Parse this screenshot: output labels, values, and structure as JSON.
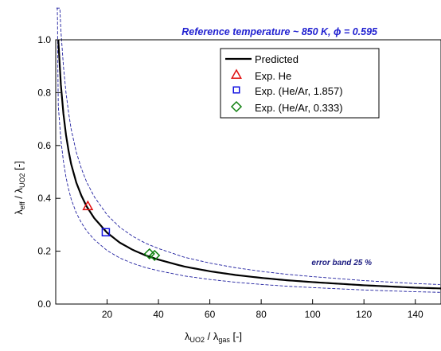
{
  "chart_data": {
    "type": "line",
    "title": "",
    "annotation_title": {
      "prefix": "Reference temperature ~ 850 K, ",
      "phi_symbol": "ϕ",
      "suffix": " = 0.595"
    },
    "annotation_error": "error band 25 %",
    "xlabel": {
      "main": "λ",
      "sub1": "UO2",
      "mid": " / λ",
      "sub2": "gas",
      "tail": " [-]"
    },
    "ylabel": {
      "main": "λ",
      "sub1": "eff",
      "mid": " / λ",
      "sub2": "UO2",
      "tail": " [-]"
    },
    "xlim": [
      0,
      150
    ],
    "ylim": [
      0,
      1.0
    ],
    "xticks": [
      20,
      40,
      60,
      80,
      100,
      120,
      140
    ],
    "yticks": [
      0.0,
      0.2,
      0.4,
      0.6,
      0.8,
      1.0
    ],
    "ytick_labels": [
      "0.0",
      "0.2",
      "0.4",
      "0.6",
      "0.8",
      "1.0"
    ],
    "grid": false,
    "legend_position": "top-right",
    "colors": {
      "predicted": "#000000",
      "error_band": "#1f1f9f",
      "he": "#e01010",
      "he_ar_1857": "#1010e0",
      "he_ar_0333": "#108010"
    },
    "series": [
      {
        "name": "Predicted",
        "kind": "line",
        "x": [
          1,
          2,
          3,
          4,
          5,
          6,
          8,
          10,
          12,
          15,
          20,
          25,
          30,
          35,
          40,
          50,
          60,
          70,
          80,
          90,
          100,
          120,
          140,
          150
        ],
        "y": [
          1.0,
          0.83,
          0.72,
          0.64,
          0.58,
          0.53,
          0.46,
          0.41,
          0.37,
          0.325,
          0.27,
          0.232,
          0.205,
          0.184,
          0.168,
          0.142,
          0.124,
          0.11,
          0.099,
          0.09,
          0.083,
          0.071,
          0.062,
          0.059
        ]
      },
      {
        "name": "Exp. He",
        "kind": "marker",
        "marker": "triangle",
        "x": [
          12.5
        ],
        "y": [
          0.37
        ]
      },
      {
        "name": "Exp. (He/Ar, 1.857)",
        "kind": "marker",
        "marker": "square",
        "x": [
          19.5
        ],
        "y": [
          0.272
        ]
      },
      {
        "name": "Exp. (He/Ar, 0.333)",
        "kind": "marker",
        "marker": "diamond",
        "x": [
          36.5,
          38.5
        ],
        "y": [
          0.19,
          0.184
        ]
      }
    ],
    "error_band": {
      "upper_factor": 1.25,
      "lower_factor": 0.75
    }
  }
}
